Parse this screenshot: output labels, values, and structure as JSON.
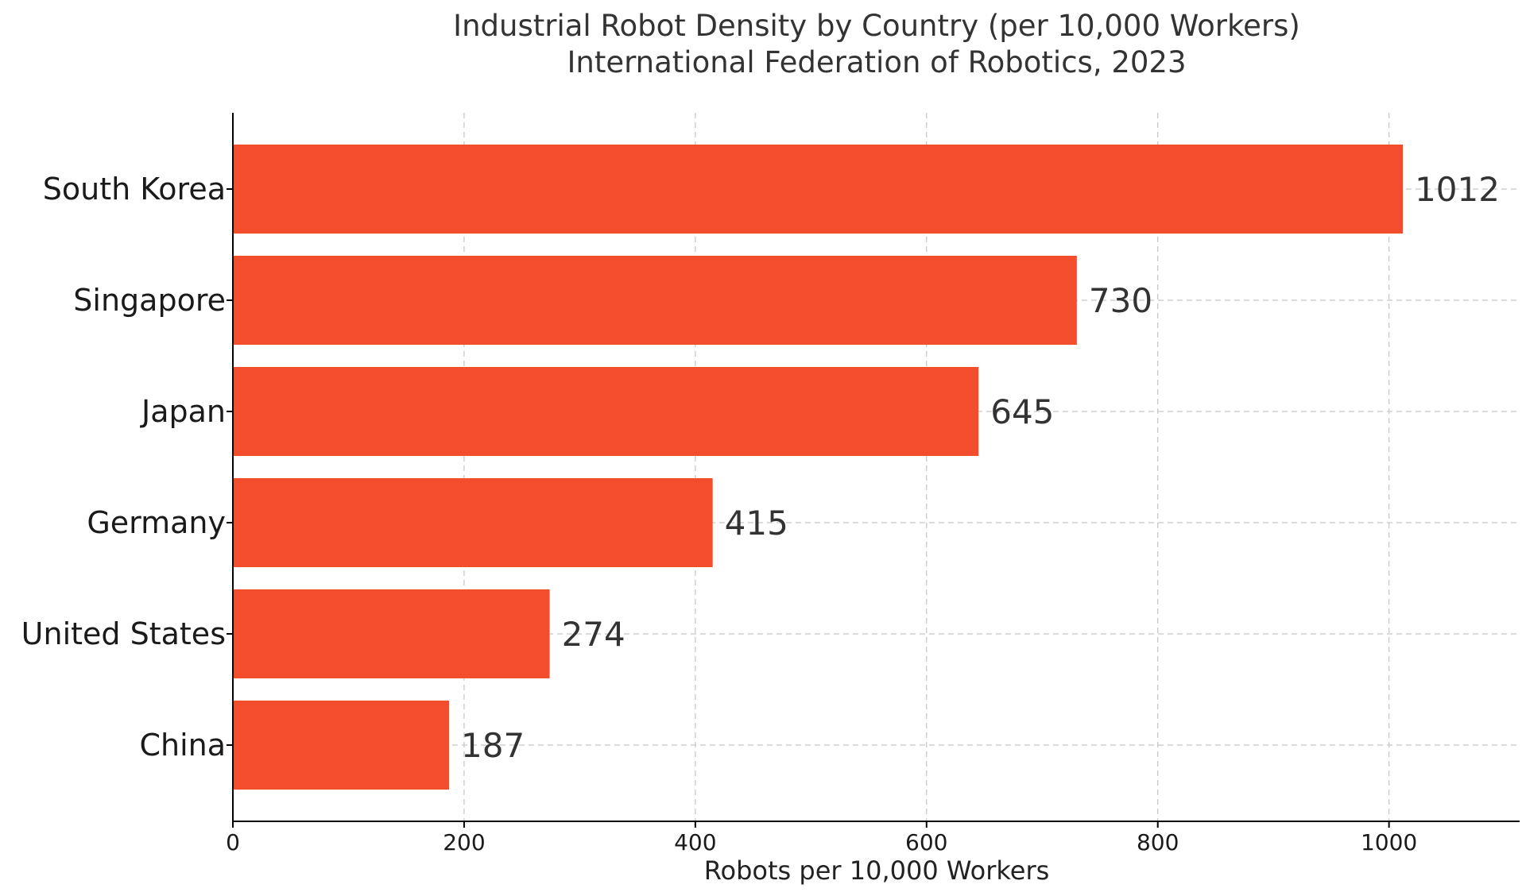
{
  "chart_data": {
    "type": "bar",
    "orientation": "horizontal",
    "title": "Industrial Robot Density by Country (per 10,000 Workers)",
    "subtitle": "International Federation of Robotics, 2023",
    "xlabel": "Robots per 10,000 Workers",
    "ylabel": "",
    "categories": [
      "South Korea",
      "Singapore",
      "Japan",
      "Germany",
      "United States",
      "China"
    ],
    "values": [
      1012,
      730,
      645,
      415,
      274,
      187
    ],
    "value_labels": [
      "1012",
      "730",
      "645",
      "415",
      "274",
      "187"
    ],
    "xlim": [
      0,
      1113
    ],
    "xticks": [
      0,
      200,
      400,
      600,
      800,
      1000
    ],
    "xtick_labels": [
      "0",
      "200",
      "400",
      "600",
      "800",
      "1000"
    ],
    "grid": true,
    "bar_color": "#f24e2e"
  }
}
